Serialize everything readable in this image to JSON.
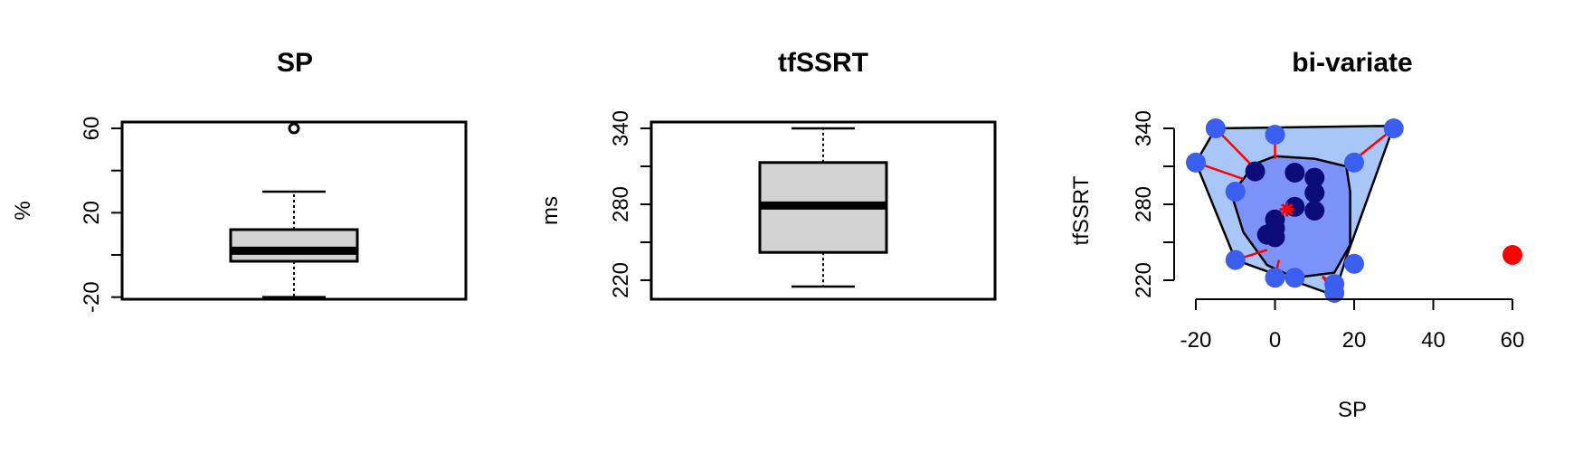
{
  "chart_data": [
    {
      "type": "box",
      "title": "SP",
      "ylabel": "%",
      "xlabel": "",
      "ylim": [
        -21,
        63
      ],
      "yticks": [
        -20,
        0,
        20,
        40,
        60
      ],
      "ytick_labels": [
        "-20",
        "",
        "20",
        "",
        "60"
      ],
      "stats": {
        "min": -20,
        "q1": -3,
        "median": 2,
        "q3": 12,
        "max": 30
      },
      "outliers": [
        60
      ]
    },
    {
      "type": "box",
      "title": "tfSSRT",
      "ylabel": "ms",
      "xlabel": "",
      "ylim": [
        205,
        345
      ],
      "yticks": [
        220,
        250,
        280,
        310,
        340
      ],
      "ytick_labels": [
        "220",
        "",
        "280",
        "",
        "340"
      ],
      "stats": {
        "min": 215,
        "q1": 242,
        "median": 279,
        "q3": 313,
        "max": 340
      },
      "outliers": []
    },
    {
      "type": "scatter",
      "title": "bi-variate",
      "xlabel": "SP",
      "ylabel": "tfSSRT",
      "xlim": [
        -20,
        60
      ],
      "ylim": [
        205,
        345
      ],
      "xticks": [
        -20,
        0,
        20,
        40,
        60
      ],
      "yticks": [
        220,
        250,
        280,
        310,
        340
      ],
      "ytick_labels": [
        "220",
        "",
        "280",
        "",
        "340"
      ],
      "colors": {
        "bag": "#7b93fb",
        "fence": "#a9c6f9",
        "outer_point": "#3a5ff0",
        "inner_point": "#0b0b7a",
        "outlier": "#ff0000",
        "whisker": "#ff0000",
        "median_marker": "#ff0000"
      },
      "median": [
        3,
        276
      ],
      "inner_points": [
        [
          -5,
          306
        ],
        [
          5,
          305
        ],
        [
          10,
          301
        ],
        [
          10,
          289
        ],
        [
          5,
          278
        ],
        [
          10,
          275
        ],
        [
          0,
          268
        ],
        [
          0,
          261
        ],
        [
          -2,
          256
        ],
        [
          0,
          254
        ]
      ],
      "outer_points": [
        [
          -15,
          340
        ],
        [
          0,
          335
        ],
        [
          30,
          340
        ],
        [
          -20,
          313
        ],
        [
          20,
          313
        ],
        [
          -10,
          290
        ],
        [
          -10,
          236
        ],
        [
          0,
          222
        ],
        [
          5,
          222
        ],
        [
          15,
          217
        ],
        [
          15,
          210
        ],
        [
          20,
          233
        ]
      ],
      "outliers": [
        [
          60,
          240
        ]
      ],
      "bag_polygon": [
        [
          -5,
          312
        ],
        [
          0,
          318
        ],
        [
          10,
          316
        ],
        [
          18,
          310
        ],
        [
          19,
          290
        ],
        [
          19,
          248
        ],
        [
          15,
          226
        ],
        [
          5,
          222
        ],
        [
          -2,
          232
        ],
        [
          -8,
          258
        ],
        [
          -11,
          288
        ]
      ],
      "fence_polygon": [
        [
          -20,
          313
        ],
        [
          -15,
          340
        ],
        [
          30,
          342
        ],
        [
          18,
          238
        ],
        [
          15,
          208
        ],
        [
          -10,
          236
        ]
      ],
      "whiskers": [
        [
          [
            -15,
            340
          ],
          [
            -5,
            308
          ]
        ],
        [
          [
            0,
            335
          ],
          [
            0,
            316
          ]
        ],
        [
          [
            30,
            340
          ],
          [
            18,
            310
          ]
        ],
        [
          [
            -20,
            313
          ],
          [
            -8,
            300
          ]
        ],
        [
          [
            20,
            313
          ],
          [
            19,
            308
          ]
        ],
        [
          [
            -10,
            290
          ],
          [
            -8,
            286
          ]
        ],
        [
          [
            -10,
            236
          ],
          [
            -2,
            244
          ]
        ],
        [
          [
            0,
            222
          ],
          [
            1,
            236
          ]
        ],
        [
          [
            15,
            217
          ],
          [
            12,
            223
          ]
        ],
        [
          [
            15,
            210
          ],
          [
            12,
            223
          ]
        ],
        [
          [
            20,
            233
          ],
          [
            18,
            238
          ]
        ],
        [
          [
            5,
            222
          ],
          [
            5,
            222
          ]
        ]
      ]
    }
  ]
}
